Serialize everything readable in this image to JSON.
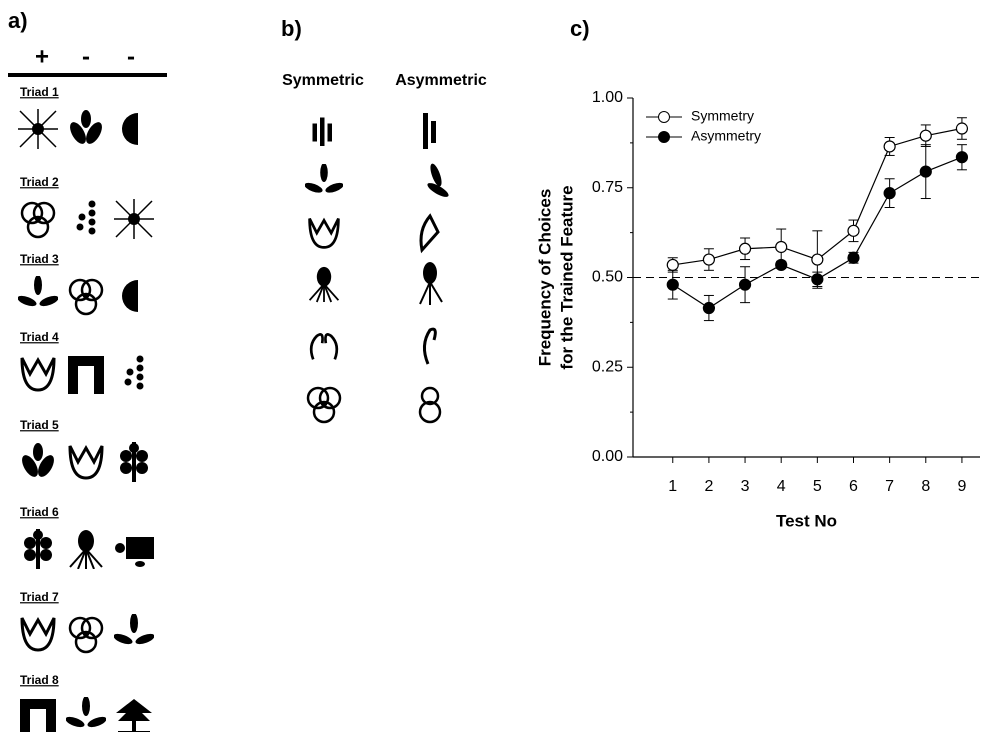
{
  "panel_a": {
    "label": "a)",
    "signs": [
      "+",
      "-",
      "-"
    ],
    "triads": [
      "Triad 1",
      "Triad 2",
      "Triad 3",
      "Triad 4",
      "Triad 5",
      "Triad 6",
      "Triad 7",
      "Triad 8"
    ]
  },
  "panel_b": {
    "label": "b)",
    "columns": [
      "Symmetric",
      "Asymmetric"
    ]
  },
  "chart_data": {
    "type": "line",
    "panel_label": "c)",
    "xlabel": "Test No",
    "ylabel": [
      "Frequency of Choices",
      "for the Trained Feature"
    ],
    "x": [
      1,
      2,
      3,
      4,
      5,
      6,
      7,
      8,
      9
    ],
    "xlim": [
      -0.1,
      9.5
    ],
    "xticks": [
      1,
      2,
      3,
      4,
      5,
      6,
      7,
      8,
      9
    ],
    "ylim": [
      0,
      1
    ],
    "yticks": [
      {
        "value": 0,
        "label": "0.00"
      },
      {
        "value": 0.25,
        "label": "0.25"
      },
      {
        "value": 0.5,
        "label": "0.50"
      },
      {
        "value": 0.75,
        "label": "0.75"
      },
      {
        "value": 1,
        "label": "1.00"
      }
    ],
    "reference_line": 0.5,
    "series": [
      {
        "name": "Symmetry",
        "marker": "open",
        "color": "#000000",
        "values": [
          0.535,
          0.55,
          0.58,
          0.585,
          0.55,
          0.63,
          0.865,
          0.895,
          0.915
        ],
        "errors": [
          0.02,
          0.03,
          0.03,
          0.05,
          0.08,
          0.03,
          0.025,
          0.03,
          0.03
        ]
      },
      {
        "name": "Asymmetry",
        "marker": "filled",
        "color": "#000000",
        "values": [
          0.48,
          0.415,
          0.48,
          0.535,
          0.495,
          0.555,
          0.735,
          0.795,
          0.835
        ],
        "errors": [
          0.04,
          0.035,
          0.05,
          0.01,
          0.02,
          0.015,
          0.04,
          0.075,
          0.035
        ]
      }
    ]
  }
}
